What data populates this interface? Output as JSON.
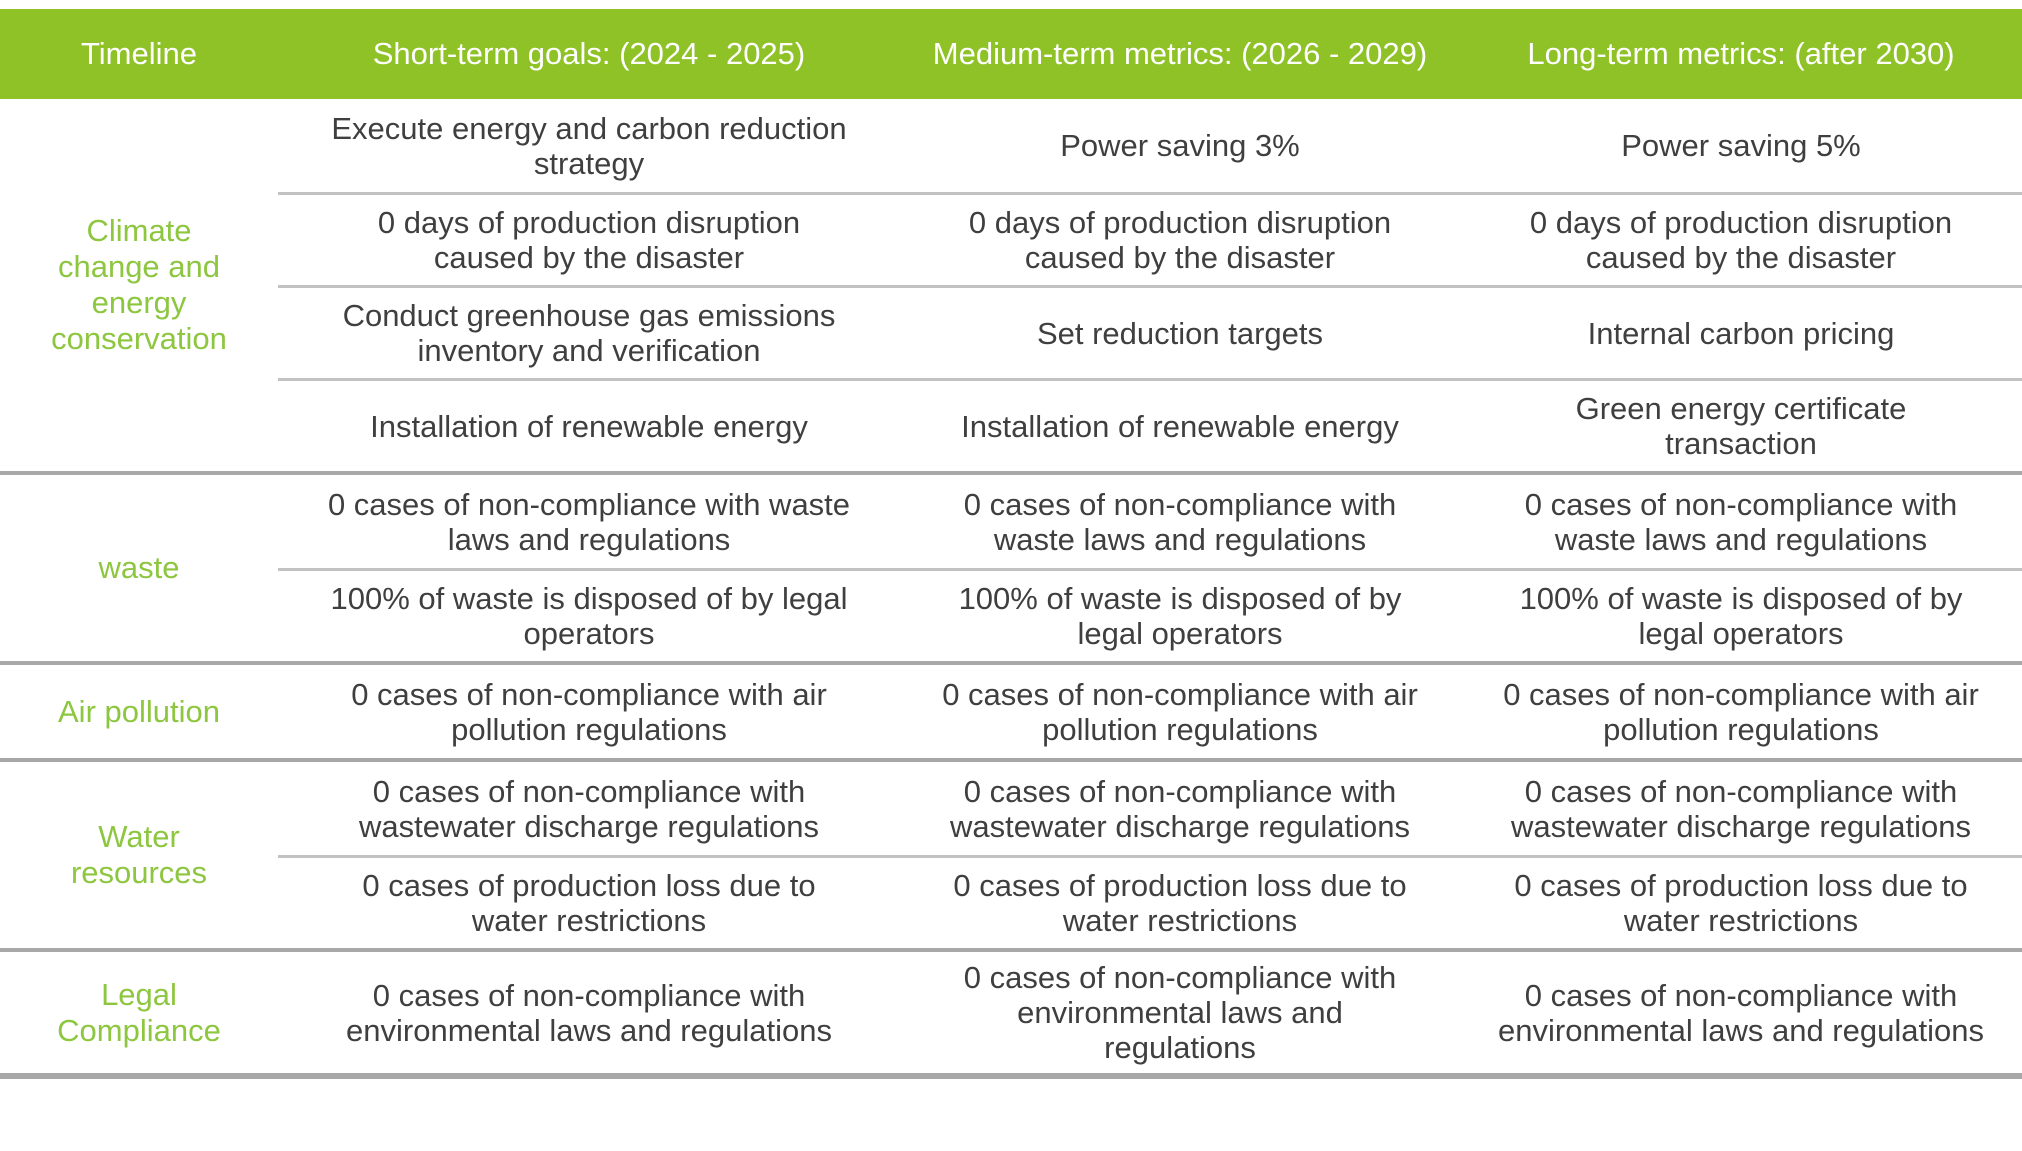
{
  "header": {
    "columns": [
      "Timeline",
      "Short-term goals: (2024 - 2025)",
      "Medium-term metrics: (2026 - 2029)",
      "Long-term metrics: (after 2030)"
    ]
  },
  "sections": [
    {
      "category": "Climate change and energy conservation",
      "rows": [
        {
          "short": "Execute energy and carbon reduction strategy",
          "medium": "Power saving 3%",
          "long": "Power saving 5%"
        },
        {
          "short": "0 days of production disruption caused by the disaster",
          "medium": "0 days of production disruption caused by the disaster",
          "long": "0 days of production disruption caused by the disaster"
        },
        {
          "short": "Conduct greenhouse gas emissions inventory and verification",
          "medium": "Set reduction targets",
          "long": "Internal carbon pricing"
        },
        {
          "short": "Installation of renewable energy",
          "medium": "Installation of renewable energy",
          "long": "Green energy certificate transaction"
        }
      ]
    },
    {
      "category": "waste",
      "rows": [
        {
          "short": "0 cases of non-compliance with waste laws and regulations",
          "medium": "0 cases of non-compliance with waste laws and regulations",
          "long": "0 cases of non-compliance with waste laws and regulations"
        },
        {
          "short": "100% of waste is disposed of by legal operators",
          "medium": "100% of waste is disposed of by legal operators",
          "long": "100% of waste is disposed of by legal operators"
        }
      ]
    },
    {
      "category": "Air pollution",
      "rows": [
        {
          "short": "0 cases of non-compliance with air pollution regulations",
          "medium": "0 cases of non-compliance with air pollution regulations",
          "long": "0 cases of non-compliance with air pollution regulations"
        }
      ]
    },
    {
      "category": "Water resources",
      "rows": [
        {
          "short": "0 cases of non-compliance with wastewater discharge regulations",
          "medium": "0 cases of non-compliance with wastewater discharge regulations",
          "long": "0 cases of non-compliance with wastewater discharge regulations"
        },
        {
          "short": "0 cases of production loss due to water restrictions",
          "medium": "0 cases of production loss due to water restrictions",
          "long": "0 cases of production loss due to water restrictions"
        }
      ]
    },
    {
      "category": "Legal Compliance",
      "rows": [
        {
          "short": "0 cases of non-compliance with environmental laws and regulations",
          "medium": "0 cases of non-compliance with environmental laws and regulations",
          "long": "0 cases of non-compliance with environmental laws and regulations"
        }
      ]
    }
  ],
  "colors": {
    "header_bg": "#8FC226",
    "header_text": "#FFFFFF",
    "category_text": "#8DC63F",
    "body_text": "#3F3F3F",
    "section_divider": "#A8A8A8",
    "row_divider": "#C2C2C2"
  }
}
